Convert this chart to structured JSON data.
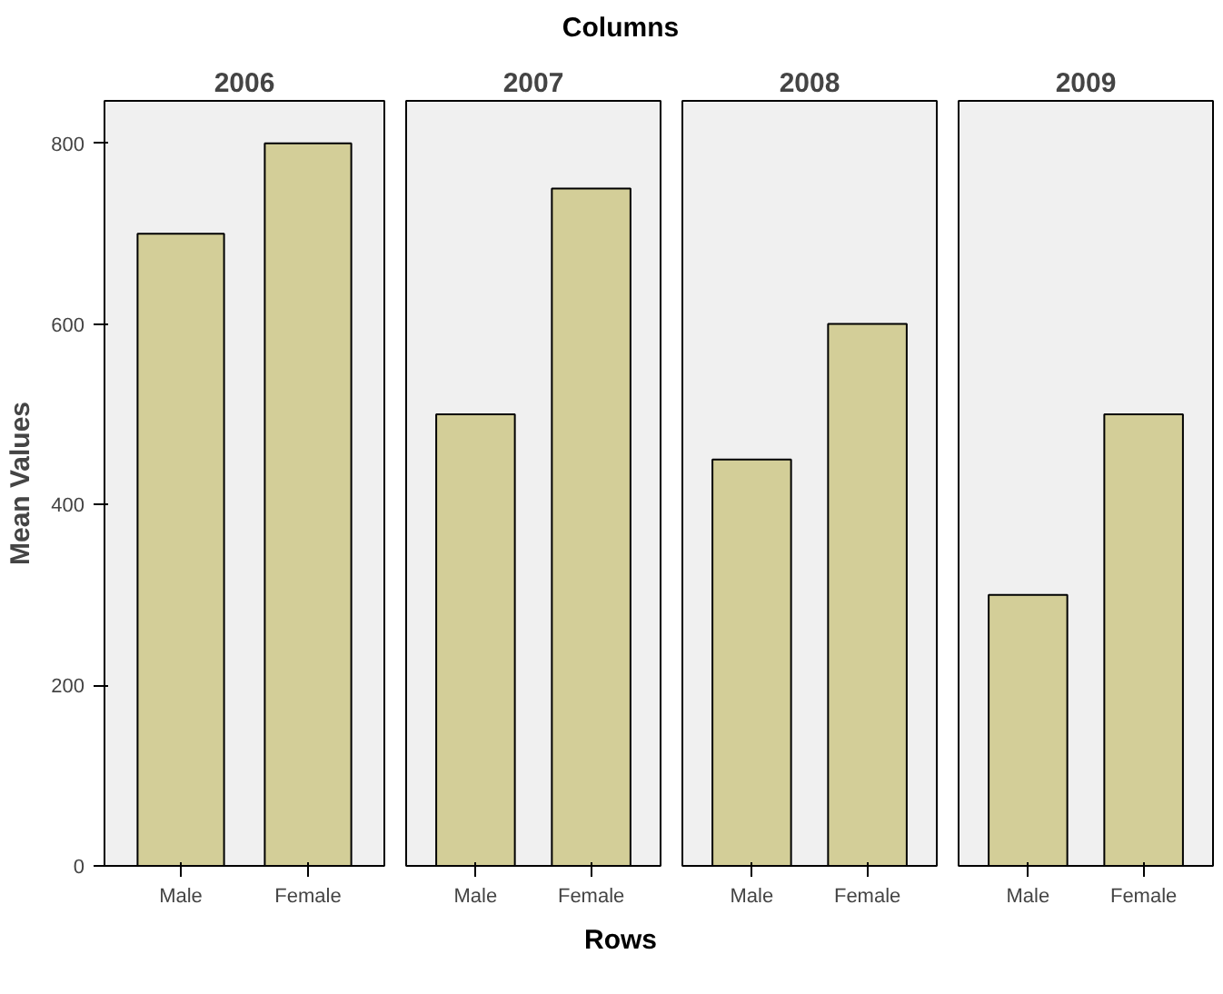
{
  "chart_data": [
    {
      "type": "bar",
      "title": "2006",
      "ylabel": "Mean Values",
      "annotations": [
        "Columns",
        "Rows"
      ],
      "categories": [
        "Male",
        "Female"
      ],
      "values": [
        700,
        800
      ],
      "color": "#d3ce98",
      "ylim": [
        0,
        847
      ],
      "yticks": [
        0,
        200,
        400,
        600,
        800
      ],
      "grid": false
    },
    {
      "type": "bar",
      "title": "2007",
      "categories": [
        "Male",
        "Female"
      ],
      "values": [
        500,
        750
      ],
      "color": "#d3ce98",
      "ylim": [
        0,
        847
      ],
      "tick_labels": "x",
      "grid": false
    },
    {
      "type": "bar",
      "title": "2008",
      "categories": [
        "Male",
        "Female"
      ],
      "values": [
        450,
        600
      ],
      "color": "#d3ce98",
      "ylim": [
        0,
        847
      ],
      "tick_labels": "x",
      "grid": false
    },
    {
      "type": "bar",
      "title": "2009",
      "categories": [
        "Male",
        "Female"
      ],
      "values": [
        300,
        500
      ],
      "color": "#d3ce98",
      "ylim": [
        0,
        847
      ],
      "tick_labels": "x",
      "grid": false
    }
  ]
}
